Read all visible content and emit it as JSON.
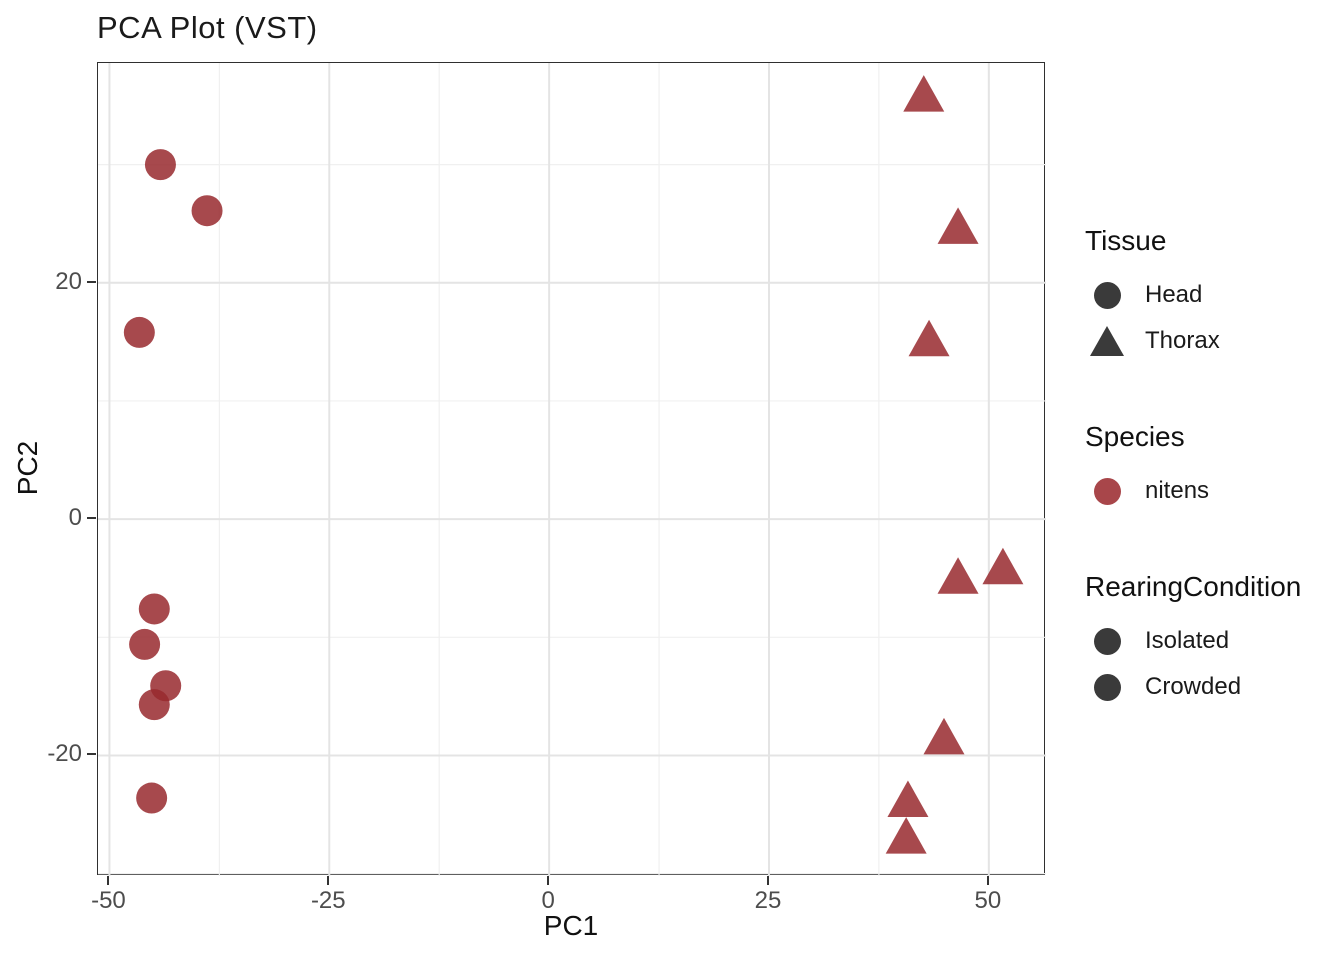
{
  "chart_data": {
    "type": "scatter",
    "title": "PCA Plot (VST)",
    "xlabel": "PC1",
    "ylabel": "PC2",
    "xlim": [
      -51.3,
      56.5
    ],
    "ylim": [
      -30.2,
      38.6
    ],
    "x_tick_values": [
      -50,
      -25,
      0,
      25,
      50
    ],
    "x_tick_labels": [
      "-50",
      "-25",
      "0",
      "25",
      "50"
    ],
    "y_tick_values": [
      20,
      0,
      -20
    ],
    "y_tick_labels": [
      "20",
      "0",
      "-20"
    ],
    "x_minor_ticks": [
      -37.5,
      -12.5,
      12.5,
      37.5
    ],
    "y_minor_ticks": [
      30,
      10,
      -10,
      -30
    ],
    "grid": "on",
    "legend_position": "right",
    "point_color": "#98292E",
    "point_opacity": 0.85,
    "series": [
      {
        "name": "Head",
        "shape": "circle",
        "points": [
          [
            -44.2,
            30.0
          ],
          [
            -38.9,
            26.1
          ],
          [
            -46.6,
            15.8
          ],
          [
            -44.9,
            -7.6
          ],
          [
            -46.0,
            -10.6
          ],
          [
            -43.6,
            -14.1
          ],
          [
            -44.9,
            -15.7
          ],
          [
            -45.2,
            -23.6
          ]
        ]
      },
      {
        "name": "Thorax",
        "shape": "triangle",
        "points": [
          [
            42.6,
            35.8
          ],
          [
            46.5,
            24.6
          ],
          [
            43.2,
            15.1
          ],
          [
            46.5,
            -5.0
          ],
          [
            51.6,
            -4.2
          ],
          [
            44.9,
            -18.6
          ],
          [
            40.8,
            -23.9
          ],
          [
            40.6,
            -27.0
          ]
        ]
      }
    ]
  },
  "legend": {
    "groups": [
      {
        "title": "Tissue",
        "items": [
          {
            "label": "Head",
            "shape": "circle",
            "color": "#3A3A3A"
          },
          {
            "label": "Thorax",
            "shape": "triangle",
            "color": "#3A3A3A"
          }
        ]
      },
      {
        "title": "Species",
        "items": [
          {
            "label": "nitens",
            "shape": "circle",
            "color": "#A8464A"
          }
        ]
      },
      {
        "title": "RearingCondition",
        "items": [
          {
            "label": "Isolated",
            "shape": "circle",
            "color": "#3A3A3A"
          },
          {
            "label": "Crowded",
            "shape": "circle",
            "color": "#3A3A3A"
          }
        ]
      }
    ]
  },
  "colors": {
    "panel_background": "#FFFFFF",
    "panel_border": "#2F2F2F",
    "grid_major": "#E4E4E4",
    "grid_minor": "#F0F0F0",
    "tick_mark": "#333333",
    "tick_text": "#4D4D4D",
    "text": "#111111"
  }
}
